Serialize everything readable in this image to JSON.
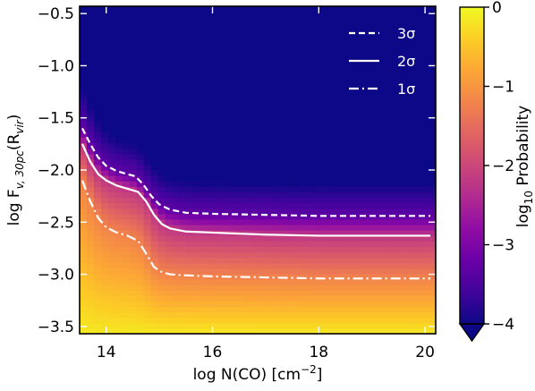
{
  "chart_data": {
    "type": "heatmap",
    "xlabel": "log N(CO) [cm",
    "xlabel_sup": "−2",
    "xlabel_end": "]",
    "ylabel": "log F",
    "ylabel_sub": "v, 30pc",
    "ylabel_mid": "(R",
    "ylabel_sub2": "vir",
    "ylabel_end": ")",
    "xlim": [
      13.5,
      20.2
    ],
    "ylim": [
      -3.57,
      -0.43
    ],
    "xticks": [
      {
        "value": 14,
        "label": "14"
      },
      {
        "value": 16,
        "label": "16"
      },
      {
        "value": 18,
        "label": "18"
      },
      {
        "value": 20,
        "label": "20"
      }
    ],
    "yticks": [
      {
        "value": -0.5,
        "label": "−0.5"
      },
      {
        "value": -1.0,
        "label": "−1.0"
      },
      {
        "value": -1.5,
        "label": "−1.5"
      },
      {
        "value": -2.0,
        "label": "−2.0"
      },
      {
        "value": -2.5,
        "label": "−2.5"
      },
      {
        "value": -3.0,
        "label": "−3.0"
      },
      {
        "value": -3.5,
        "label": "−3.5"
      }
    ],
    "colorbar": {
      "label": "log",
      "label_sub": "10",
      "label_end": " Probability",
      "range": [
        -4,
        0
      ],
      "colormap": "plasma",
      "extend": "min",
      "ticks": [
        {
          "value": 0,
          "label": "0"
        },
        {
          "value": -1,
          "label": "−1"
        },
        {
          "value": -2,
          "label": "−2"
        },
        {
          "value": -3,
          "label": "−3"
        },
        {
          "value": -4,
          "label": "−4"
        }
      ]
    },
    "series": [
      {
        "name": "3σ",
        "style": "dashed",
        "x": [
          13.55,
          13.7,
          13.85,
          14.0,
          14.2,
          14.4,
          14.55,
          14.7,
          14.85,
          15.0,
          15.2,
          15.5,
          16.0,
          17.0,
          18.0,
          19.0,
          20.1
        ],
        "y": [
          -1.6,
          -1.75,
          -1.88,
          -1.96,
          -2.01,
          -2.04,
          -2.06,
          -2.14,
          -2.25,
          -2.33,
          -2.38,
          -2.41,
          -2.42,
          -2.43,
          -2.44,
          -2.44,
          -2.44
        ]
      },
      {
        "name": "2σ",
        "style": "solid",
        "x": [
          13.55,
          13.7,
          13.85,
          14.0,
          14.2,
          14.4,
          14.6,
          14.75,
          14.9,
          15.05,
          15.2,
          15.5,
          16.0,
          17.0,
          18.0,
          19.0,
          20.1
        ],
        "y": [
          -1.75,
          -1.92,
          -2.04,
          -2.1,
          -2.15,
          -2.18,
          -2.21,
          -2.3,
          -2.43,
          -2.52,
          -2.56,
          -2.59,
          -2.6,
          -2.62,
          -2.63,
          -2.63,
          -2.63
        ]
      },
      {
        "name": "1σ",
        "style": "dashdot",
        "x": [
          13.55,
          13.7,
          13.85,
          14.0,
          14.2,
          14.4,
          14.6,
          14.75,
          14.9,
          15.05,
          15.2,
          15.5,
          16.0,
          17.0,
          18.0,
          19.0,
          20.1
        ],
        "y": [
          -2.1,
          -2.3,
          -2.46,
          -2.55,
          -2.6,
          -2.63,
          -2.68,
          -2.8,
          -2.93,
          -2.98,
          -3.0,
          -3.01,
          -3.02,
          -3.03,
          -3.04,
          -3.04,
          -3.04
        ]
      }
    ],
    "legend": {
      "placement": "top-right",
      "entries": [
        {
          "label": "3σ",
          "style": "dashed"
        },
        {
          "label": "2σ",
          "style": "solid"
        },
        {
          "label": "1σ",
          "style": "dashdot"
        }
      ]
    },
    "background_color": "#0d0887",
    "line_color": "#ffffff"
  }
}
